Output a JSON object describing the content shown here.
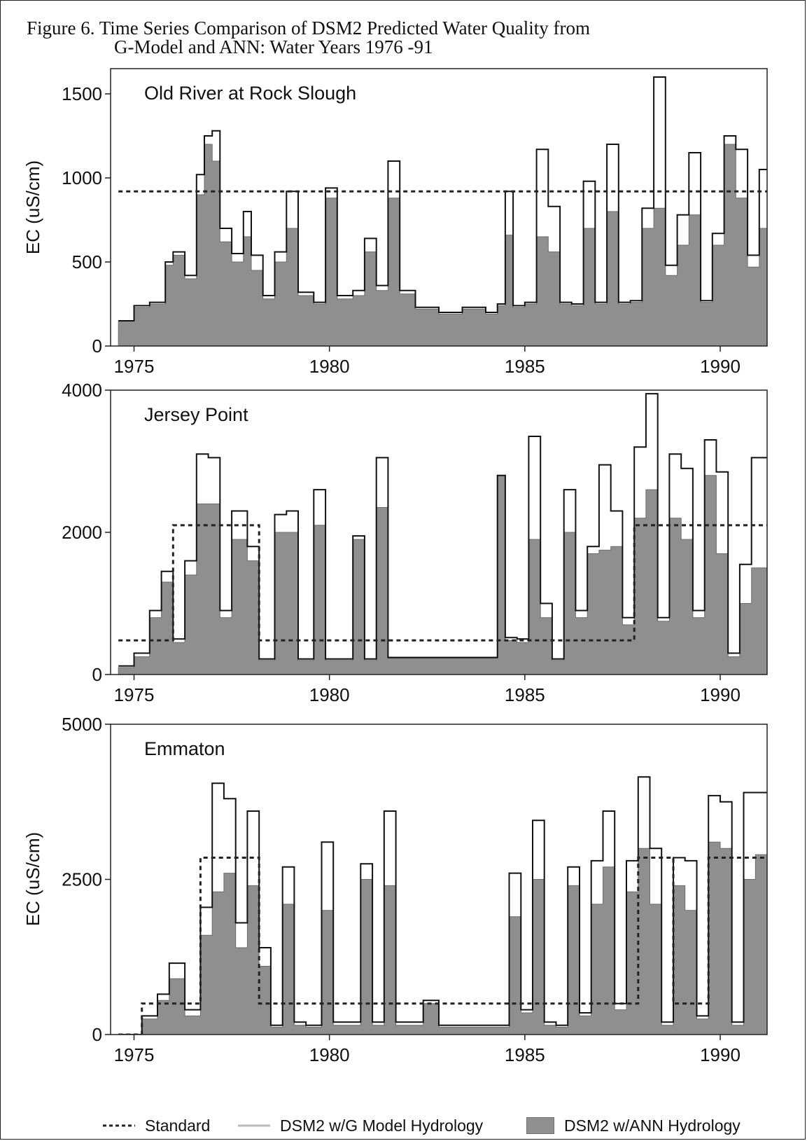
{
  "figure": {
    "title_line1": "Figure 6.  Time Series Comparison of DSM2 Predicted Water Quality from",
    "title_line2": "G-Model and ANN: Water Years 1976 -91"
  },
  "legend": {
    "standard": "Standard",
    "gmodel": "DSM2 w/G Model Hydrology",
    "ann": "DSM2 w/ANN Hydrology"
  },
  "colors": {
    "ann_fill": "#8f8f8f",
    "gmodel_line": "#111111",
    "standard_line": "#222222",
    "axis": "#222222"
  },
  "chart_data": [
    {
      "type": "area",
      "title": "Old River at Rock Slough",
      "ylabel": "EC (uS/cm)",
      "xlabel": "",
      "xlim": [
        1974.4,
        1991.2
      ],
      "ylim": [
        0,
        1650
      ],
      "yticks": [
        0,
        500,
        1000,
        1500
      ],
      "xticks": [
        1975,
        1980,
        1985,
        1990
      ],
      "x": [
        1974.6,
        1975.0,
        1975.4,
        1975.8,
        1976.0,
        1976.3,
        1976.6,
        1976.8,
        1977.0,
        1977.2,
        1977.5,
        1977.8,
        1978.0,
        1978.3,
        1978.6,
        1978.9,
        1979.2,
        1979.6,
        1979.9,
        1980.2,
        1980.6,
        1980.9,
        1981.2,
        1981.5,
        1981.8,
        1982.2,
        1982.8,
        1983.4,
        1984.0,
        1984.3,
        1984.5,
        1984.7,
        1985.0,
        1985.3,
        1985.6,
        1985.9,
        1986.2,
        1986.5,
        1986.8,
        1987.1,
        1987.4,
        1987.7,
        1988.0,
        1988.3,
        1988.6,
        1988.9,
        1989.2,
        1989.5,
        1989.8,
        1990.1,
        1990.4,
        1990.7,
        1991.0
      ],
      "series": [
        {
          "name": "DSM2 w/G Model Hydrology",
          "values": [
            150,
            240,
            260,
            500,
            560,
            420,
            1020,
            1250,
            1280,
            700,
            550,
            800,
            540,
            300,
            560,
            920,
            320,
            260,
            940,
            300,
            330,
            640,
            360,
            1100,
            330,
            230,
            200,
            230,
            200,
            250,
            920,
            240,
            260,
            1170,
            830,
            260,
            250,
            980,
            260,
            1200,
            260,
            270,
            820,
            1600,
            480,
            780,
            1150,
            270,
            670,
            1250,
            1170,
            540,
            1050
          ]
        },
        {
          "name": "DSM2 w/ANN Hydrology",
          "values": [
            150,
            230,
            250,
            480,
            540,
            400,
            900,
            1200,
            1100,
            620,
            500,
            650,
            450,
            280,
            500,
            700,
            300,
            250,
            880,
            280,
            300,
            560,
            330,
            880,
            310,
            220,
            190,
            220,
            190,
            240,
            660,
            230,
            250,
            650,
            560,
            250,
            240,
            700,
            250,
            800,
            250,
            260,
            700,
            820,
            420,
            600,
            780,
            260,
            600,
            1200,
            880,
            470,
            700
          ]
        },
        {
          "name": "Standard",
          "values": [
            920,
            920,
            920,
            920,
            920,
            920,
            920,
            920,
            920,
            920,
            920,
            920,
            920,
            920,
            920,
            920,
            920,
            920,
            920,
            920,
            920,
            920,
            920,
            920,
            920,
            920,
            920,
            920,
            920,
            920,
            920,
            920,
            920,
            920,
            920,
            920,
            920,
            920,
            920,
            920,
            920,
            920,
            920,
            920,
            920,
            920,
            920,
            920,
            920,
            920,
            920,
            920,
            920
          ]
        }
      ]
    },
    {
      "type": "area",
      "title": "Jersey Point",
      "ylabel": "",
      "xlabel": "",
      "xlim": [
        1974.4,
        1991.2
      ],
      "ylim": [
        0,
        4000
      ],
      "yticks": [
        0,
        2000,
        4000
      ],
      "xticks": [
        1975,
        1980,
        1985,
        1990
      ],
      "x": [
        1974.6,
        1975.0,
        1975.4,
        1975.7,
        1976.0,
        1976.3,
        1976.6,
        1976.9,
        1977.2,
        1977.5,
        1977.9,
        1978.2,
        1978.6,
        1978.9,
        1979.2,
        1979.6,
        1979.9,
        1980.2,
        1980.6,
        1980.9,
        1981.2,
        1981.5,
        1981.8,
        1982.2,
        1982.8,
        1983.4,
        1984.0,
        1984.3,
        1984.5,
        1984.8,
        1985.1,
        1985.4,
        1985.7,
        1986.0,
        1986.3,
        1986.6,
        1986.9,
        1987.2,
        1987.5,
        1987.8,
        1988.1,
        1988.4,
        1988.7,
        1989.0,
        1989.3,
        1989.6,
        1989.9,
        1990.2,
        1990.5,
        1990.8,
        1991.0
      ],
      "series": [
        {
          "name": "DSM2 w/G Model Hydrology",
          "values": [
            120,
            300,
            900,
            1450,
            500,
            1600,
            3100,
            3050,
            900,
            2300,
            1800,
            220,
            2250,
            2300,
            220,
            2600,
            220,
            220,
            1950,
            220,
            3050,
            240,
            240,
            240,
            240,
            240,
            240,
            2800,
            520,
            500,
            3350,
            1000,
            220,
            2600,
            900,
            1800,
            2950,
            2300,
            800,
            3200,
            3950,
            800,
            3100,
            2900,
            900,
            3300,
            2850,
            300,
            1550,
            3050,
            3050
          ]
        },
        {
          "name": "DSM2 w/ANN Hydrology",
          "values": [
            100,
            250,
            800,
            1300,
            450,
            1400,
            2400,
            2400,
            800,
            1900,
            1600,
            200,
            2000,
            2000,
            200,
            2100,
            200,
            200,
            1900,
            200,
            2350,
            230,
            230,
            230,
            230,
            230,
            230,
            2800,
            480,
            450,
            1900,
            800,
            200,
            2000,
            800,
            1700,
            1750,
            1800,
            700,
            2200,
            2600,
            750,
            2200,
            1900,
            800,
            2800,
            1700,
            250,
            1000,
            1500,
            1500
          ]
        },
        {
          "name": "Standard",
          "values": [
            480,
            480,
            480,
            480,
            2100,
            2100,
            2100,
            2100,
            2100,
            2100,
            2100,
            480,
            480,
            480,
            480,
            480,
            480,
            480,
            480,
            480,
            480,
            480,
            480,
            480,
            480,
            480,
            480,
            480,
            480,
            480,
            480,
            480,
            480,
            480,
            480,
            480,
            480,
            480,
            480,
            2100,
            2100,
            2100,
            2100,
            2100,
            2100,
            2100,
            2100,
            2100,
            2100,
            2100,
            2100
          ]
        }
      ]
    },
    {
      "type": "area",
      "title": "Emmaton",
      "ylabel": "EC (uS/cm)",
      "xlabel": "",
      "xlim": [
        1974.4,
        1991.2
      ],
      "ylim": [
        0,
        5000
      ],
      "yticks": [
        0,
        2500,
        5000
      ],
      "xticks": [
        1975,
        1980,
        1985,
        1990
      ],
      "x": [
        1974.6,
        1975.2,
        1975.6,
        1975.9,
        1976.3,
        1976.7,
        1977.0,
        1977.3,
        1977.6,
        1977.9,
        1978.2,
        1978.5,
        1978.8,
        1979.1,
        1979.4,
        1979.8,
        1980.1,
        1980.4,
        1980.8,
        1981.1,
        1981.4,
        1981.7,
        1982.0,
        1982.4,
        1982.8,
        1983.4,
        1984.0,
        1984.3,
        1984.6,
        1984.9,
        1985.2,
        1985.5,
        1985.8,
        1986.1,
        1986.4,
        1986.7,
        1987.0,
        1987.3,
        1987.6,
        1987.9,
        1988.2,
        1988.5,
        1988.8,
        1989.1,
        1989.4,
        1989.7,
        1990.0,
        1990.3,
        1990.6,
        1990.9,
        1991.0
      ],
      "series": [
        {
          "name": "DSM2 w/G Model Hydrology",
          "values": [
            0,
            300,
            650,
            1150,
            400,
            2050,
            4050,
            3800,
            1800,
            3600,
            1400,
            150,
            2700,
            200,
            150,
            3100,
            200,
            200,
            2750,
            200,
            3600,
            200,
            200,
            550,
            150,
            150,
            150,
            150,
            2600,
            400,
            3450,
            200,
            150,
            2700,
            350,
            2800,
            3600,
            500,
            2800,
            4150,
            3000,
            200,
            2850,
            2800,
            300,
            3850,
            3750,
            200,
            3900,
            3900,
            3900
          ]
        },
        {
          "name": "DSM2 w/ANN Hydrology",
          "values": [
            0,
            250,
            550,
            900,
            300,
            1600,
            2300,
            2600,
            1400,
            2400,
            1100,
            120,
            2100,
            150,
            120,
            2000,
            150,
            150,
            2500,
            150,
            2400,
            150,
            150,
            500,
            120,
            120,
            120,
            120,
            1900,
            350,
            2500,
            150,
            120,
            2400,
            300,
            2100,
            2700,
            400,
            2300,
            3000,
            2100,
            150,
            2400,
            2000,
            250,
            3100,
            3000,
            150,
            2500,
            2900,
            2900
          ]
        },
        {
          "name": "Standard",
          "values": [
            0,
            500,
            500,
            500,
            500,
            2850,
            2850,
            2850,
            2850,
            2850,
            500,
            500,
            500,
            500,
            500,
            500,
            500,
            500,
            500,
            500,
            500,
            500,
            500,
            500,
            500,
            500,
            500,
            500,
            500,
            500,
            500,
            500,
            500,
            500,
            500,
            500,
            500,
            500,
            500,
            2850,
            2850,
            2850,
            500,
            500,
            500,
            2850,
            2850,
            2850,
            2850,
            2850,
            2850
          ]
        }
      ]
    }
  ]
}
